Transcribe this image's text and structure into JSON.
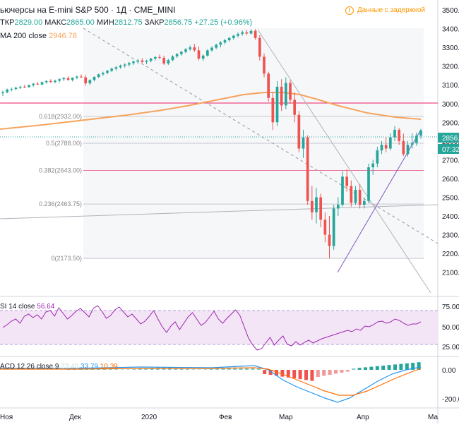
{
  "header": {
    "title": "ьючерсы на E-mini S&P 500 · 1Д · CME_MINI",
    "ohlc": [
      {
        "label": "ТКР",
        "value": "2829.00"
      },
      {
        "label": "МАКС",
        "value": "2865.00"
      },
      {
        "label": "МИН",
        "value": "2812.75"
      },
      {
        "label": "ЗАКР",
        "value": "2856.75"
      }
    ],
    "change": "+27.25 (+0.96%)",
    "delay_badge": "Данные с задержкой",
    "ma_label": "MA 200 close",
    "ma_value": "2946.78"
  },
  "price_axis": {
    "ticks": [
      "3500.00",
      "3400.00",
      "3300.00",
      "3200.00",
      "3100.00",
      "3000.00",
      "2900.00",
      "2800.00",
      "2700.00",
      "2600.00",
      "2500.00",
      "2400.00",
      "2300.00",
      "2200.00",
      "2100.00"
    ],
    "last_price_label": "2856.",
    "countdown_label": "07:32:"
  },
  "fib_labels": [
    {
      "text": "0.618(2932.00)",
      "price": 2932.0
    },
    {
      "text": "0.5(2788.00)",
      "price": 2788.0
    },
    {
      "text": "0.382(2643.00)",
      "price": 2643.0
    },
    {
      "text": "0.236(2463.75)",
      "price": 2463.75
    },
    {
      "text": "0(2173.50)",
      "price": 2173.5
    }
  ],
  "time_axis": {
    "labels": [
      "Ноя",
      "Дек",
      "2020",
      "Фев",
      "Мар",
      "Апр",
      "Ма"
    ]
  },
  "rsi": {
    "label": "SI 14 close",
    "value": "56.64",
    "ticks": [
      "75.00",
      "50.00",
      "25.00"
    ]
  },
  "macd": {
    "label": "ACD 12 26 close 9",
    "hist_value": "23.40",
    "macd_value": "33.79",
    "signal_value": "10.39",
    "ticks": [
      "0.00",
      "-200.00"
    ]
  },
  "colors": {
    "up": "#26a69a",
    "down": "#ef5350",
    "ma": "#f7a35c",
    "rsi_line": "#9c27b0",
    "rsi_band": "#f3e5f5",
    "macd_line": "#2196f3",
    "signal_line": "#ff6d00",
    "fib_region": "#eef0f4",
    "resistance": "#e91e63",
    "trend_up": "#7e57c2"
  },
  "chart_data": {
    "type": "candlestick",
    "symbol": "E-mini S&P 500",
    "interval": "1D",
    "ylim": [
      2075,
      3545
    ],
    "x_labels": [
      "Ноя",
      "Дек",
      "2020",
      "Фев",
      "Мар",
      "Апр",
      "Ма"
    ],
    "last_price": 2856.75,
    "candles": [
      {
        "o": 3055,
        "h": 3070,
        "l": 3040,
        "c": 3060
      },
      {
        "o": 3060,
        "h": 3080,
        "l": 3055,
        "c": 3075
      },
      {
        "o": 3075,
        "h": 3085,
        "l": 3065,
        "c": 3078
      },
      {
        "o": 3078,
        "h": 3090,
        "l": 3070,
        "c": 3085
      },
      {
        "o": 3085,
        "h": 3095,
        "l": 3078,
        "c": 3090
      },
      {
        "o": 3090,
        "h": 3100,
        "l": 3082,
        "c": 3088
      },
      {
        "o": 3088,
        "h": 3102,
        "l": 3084,
        "c": 3098
      },
      {
        "o": 3098,
        "h": 3110,
        "l": 3090,
        "c": 3106
      },
      {
        "o": 3106,
        "h": 3115,
        "l": 3098,
        "c": 3102
      },
      {
        "o": 3102,
        "h": 3118,
        "l": 3096,
        "c": 3114
      },
      {
        "o": 3114,
        "h": 3125,
        "l": 3106,
        "c": 3120
      },
      {
        "o": 3120,
        "h": 3130,
        "l": 3110,
        "c": 3115
      },
      {
        "o": 3115,
        "h": 3128,
        "l": 3108,
        "c": 3122
      },
      {
        "o": 3122,
        "h": 3135,
        "l": 3112,
        "c": 3130
      },
      {
        "o": 3130,
        "h": 3142,
        "l": 3120,
        "c": 3136
      },
      {
        "o": 3136,
        "h": 3146,
        "l": 3122,
        "c": 3126
      },
      {
        "o": 3126,
        "h": 3140,
        "l": 3118,
        "c": 3138
      },
      {
        "o": 3138,
        "h": 3150,
        "l": 3130,
        "c": 3144
      },
      {
        "o": 3144,
        "h": 3156,
        "l": 3136,
        "c": 3140
      },
      {
        "o": 3140,
        "h": 3152,
        "l": 3095,
        "c": 3108
      },
      {
        "o": 3108,
        "h": 3130,
        "l": 3100,
        "c": 3126
      },
      {
        "o": 3126,
        "h": 3146,
        "l": 3118,
        "c": 3142
      },
      {
        "o": 3142,
        "h": 3160,
        "l": 3136,
        "c": 3156
      },
      {
        "o": 3156,
        "h": 3170,
        "l": 3148,
        "c": 3164
      },
      {
        "o": 3164,
        "h": 3180,
        "l": 3156,
        "c": 3175
      },
      {
        "o": 3175,
        "h": 3192,
        "l": 3168,
        "c": 3186
      },
      {
        "o": 3186,
        "h": 3200,
        "l": 3176,
        "c": 3194
      },
      {
        "o": 3194,
        "h": 3208,
        "l": 3186,
        "c": 3202
      },
      {
        "o": 3202,
        "h": 3215,
        "l": 3192,
        "c": 3208
      },
      {
        "o": 3208,
        "h": 3222,
        "l": 3198,
        "c": 3216
      },
      {
        "o": 3216,
        "h": 3230,
        "l": 3206,
        "c": 3224
      },
      {
        "o": 3224,
        "h": 3238,
        "l": 3212,
        "c": 3230
      },
      {
        "o": 3230,
        "h": 3242,
        "l": 3216,
        "c": 3222
      },
      {
        "o": 3222,
        "h": 3234,
        "l": 3210,
        "c": 3228
      },
      {
        "o": 3228,
        "h": 3244,
        "l": 3220,
        "c": 3240
      },
      {
        "o": 3240,
        "h": 3254,
        "l": 3230,
        "c": 3248
      },
      {
        "o": 3248,
        "h": 3262,
        "l": 3236,
        "c": 3244
      },
      {
        "o": 3244,
        "h": 3256,
        "l": 3206,
        "c": 3214
      },
      {
        "o": 3214,
        "h": 3238,
        "l": 3206,
        "c": 3232
      },
      {
        "o": 3232,
        "h": 3258,
        "l": 3226,
        "c": 3252
      },
      {
        "o": 3252,
        "h": 3270,
        "l": 3244,
        "c": 3264
      },
      {
        "o": 3264,
        "h": 3282,
        "l": 3256,
        "c": 3276
      },
      {
        "o": 3276,
        "h": 3296,
        "l": 3268,
        "c": 3290
      },
      {
        "o": 3290,
        "h": 3310,
        "l": 3282,
        "c": 3300
      },
      {
        "o": 3300,
        "h": 3318,
        "l": 3276,
        "c": 3284
      },
      {
        "o": 3284,
        "h": 3304,
        "l": 3230,
        "c": 3240
      },
      {
        "o": 3240,
        "h": 3262,
        "l": 3228,
        "c": 3256
      },
      {
        "o": 3256,
        "h": 3290,
        "l": 3250,
        "c": 3284
      },
      {
        "o": 3284,
        "h": 3306,
        "l": 3276,
        "c": 3298
      },
      {
        "o": 3298,
        "h": 3320,
        "l": 3290,
        "c": 3314
      },
      {
        "o": 3314,
        "h": 3334,
        "l": 3300,
        "c": 3326
      },
      {
        "o": 3326,
        "h": 3346,
        "l": 3316,
        "c": 3338
      },
      {
        "o": 3338,
        "h": 3356,
        "l": 3330,
        "c": 3350
      },
      {
        "o": 3350,
        "h": 3368,
        "l": 3340,
        "c": 3362
      },
      {
        "o": 3362,
        "h": 3380,
        "l": 3352,
        "c": 3372
      },
      {
        "o": 3372,
        "h": 3390,
        "l": 3362,
        "c": 3380
      },
      {
        "o": 3380,
        "h": 3394,
        "l": 3366,
        "c": 3374
      },
      {
        "o": 3374,
        "h": 3396,
        "l": 3368,
        "c": 3388
      },
      {
        "o": 3388,
        "h": 3398,
        "l": 3340,
        "c": 3350
      },
      {
        "o": 3350,
        "h": 3366,
        "l": 3230,
        "c": 3250
      },
      {
        "o": 3250,
        "h": 3268,
        "l": 3140,
        "c": 3160
      },
      {
        "o": 3160,
        "h": 3170,
        "l": 3010,
        "c": 3030
      },
      {
        "o": 3030,
        "h": 3060,
        "l": 2860,
        "c": 2900
      },
      {
        "o": 2900,
        "h": 3120,
        "l": 2880,
        "c": 3090
      },
      {
        "o": 3090,
        "h": 3130,
        "l": 2960,
        "c": 2990
      },
      {
        "o": 2990,
        "h": 3140,
        "l": 2970,
        "c": 3110
      },
      {
        "o": 3110,
        "h": 3125,
        "l": 3000,
        "c": 3020
      },
      {
        "o": 3020,
        "h": 3060,
        "l": 2900,
        "c": 2940
      },
      {
        "o": 2940,
        "h": 2960,
        "l": 2740,
        "c": 2760
      },
      {
        "o": 2760,
        "h": 2860,
        "l": 2710,
        "c": 2820
      },
      {
        "o": 2820,
        "h": 2830,
        "l": 2460,
        "c": 2480
      },
      {
        "o": 2480,
        "h": 2560,
        "l": 2380,
        "c": 2420
      },
      {
        "o": 2420,
        "h": 2550,
        "l": 2360,
        "c": 2500
      },
      {
        "o": 2500,
        "h": 2520,
        "l": 2340,
        "c": 2380
      },
      {
        "o": 2380,
        "h": 2420,
        "l": 2260,
        "c": 2300
      },
      {
        "o": 2300,
        "h": 2400,
        "l": 2174,
        "c": 2240
      },
      {
        "o": 2240,
        "h": 2460,
        "l": 2220,
        "c": 2440
      },
      {
        "o": 2440,
        "h": 2500,
        "l": 2400,
        "c": 2460
      },
      {
        "o": 2460,
        "h": 2640,
        "l": 2450,
        "c": 2610
      },
      {
        "o": 2610,
        "h": 2650,
        "l": 2530,
        "c": 2560
      },
      {
        "o": 2560,
        "h": 2590,
        "l": 2450,
        "c": 2470
      },
      {
        "o": 2470,
        "h": 2560,
        "l": 2460,
        "c": 2540
      },
      {
        "o": 2540,
        "h": 2570,
        "l": 2440,
        "c": 2460
      },
      {
        "o": 2460,
        "h": 2500,
        "l": 2440,
        "c": 2480
      },
      {
        "o": 2480,
        "h": 2680,
        "l": 2470,
        "c": 2660
      },
      {
        "o": 2660,
        "h": 2700,
        "l": 2620,
        "c": 2680
      },
      {
        "o": 2680,
        "h": 2770,
        "l": 2660,
        "c": 2750
      },
      {
        "o": 2750,
        "h": 2800,
        "l": 2730,
        "c": 2780
      },
      {
        "o": 2780,
        "h": 2820,
        "l": 2740,
        "c": 2760
      },
      {
        "o": 2760,
        "h": 2840,
        "l": 2750,
        "c": 2820
      },
      {
        "o": 2820,
        "h": 2880,
        "l": 2800,
        "c": 2860
      },
      {
        "o": 2860,
        "h": 2870,
        "l": 2780,
        "c": 2800
      },
      {
        "o": 2800,
        "h": 2840,
        "l": 2720,
        "c": 2730
      },
      {
        "o": 2730,
        "h": 2800,
        "l": 2715,
        "c": 2780
      },
      {
        "o": 2780,
        "h": 2840,
        "l": 2760,
        "c": 2790
      },
      {
        "o": 2790,
        "h": 2845,
        "l": 2775,
        "c": 2829
      },
      {
        "o": 2829,
        "h": 2865,
        "l": 2812.75,
        "c": 2856.75
      }
    ],
    "fibonacci": [
      {
        "level": 0.618,
        "price": 2932.0
      },
      {
        "level": 0.5,
        "price": 2788.0
      },
      {
        "level": 0.382,
        "price": 2643.0
      },
      {
        "level": 0.236,
        "price": 2463.75
      },
      {
        "level": 0,
        "price": 2173.5
      }
    ]
  }
}
